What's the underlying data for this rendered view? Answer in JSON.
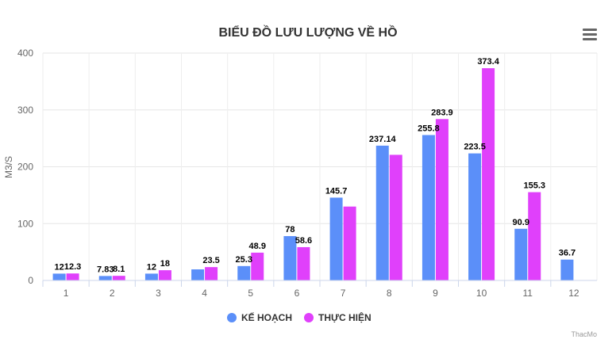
{
  "chart_data": {
    "type": "bar",
    "title": "BIỂU ĐỒ LƯU LƯỢNG VỀ HỒ",
    "xlabel": "",
    "ylabel": "M3/S",
    "ylim": [
      0,
      400
    ],
    "yticks": [
      "0",
      "100",
      "200",
      "300",
      "400"
    ],
    "categories": [
      "1",
      "2",
      "3",
      "4",
      "5",
      "6",
      "7",
      "8",
      "9",
      "10",
      "11",
      "12"
    ],
    "series": [
      {
        "name": "KẾ HOẠCH",
        "color": "#5b8ff9",
        "values": [
          12,
          7.83,
          12,
          19.5,
          25.3,
          78,
          145.7,
          237.14,
          255.8,
          223.5,
          90.9,
          36.7
        ],
        "labels": [
          "12",
          "7.83",
          "12",
          "",
          "25.3",
          "78",
          "145.7",
          "237.14",
          "255.8",
          "223.5",
          "90.9",
          "36.7"
        ]
      },
      {
        "name": "THỰC HIỆN",
        "color": "#e040fb",
        "values": [
          12.3,
          8.1,
          18,
          23.5,
          48.9,
          58.6,
          130,
          221,
          283.9,
          373.4,
          155.3,
          null
        ],
        "labels": [
          "12.3",
          "8.1",
          "18",
          "23.5",
          "48.9",
          "58.6",
          "",
          "",
          "283.9",
          "373.4",
          "155.3",
          ""
        ]
      }
    ],
    "grid": true,
    "legend_position": "bottom-center"
  },
  "credits": "ThacMo",
  "menu_icon": "hamburger-menu-icon"
}
